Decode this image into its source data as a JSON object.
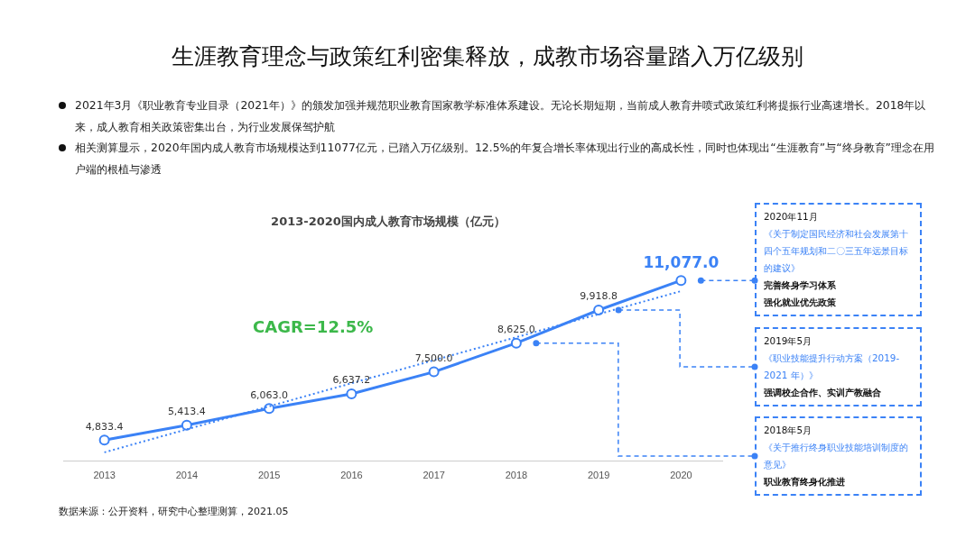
{
  "chart_data": {
    "type": "line",
    "title": "生涯教育理念与政策红利密集释放，成教市场容量踏入万亿级别",
    "subtitle": "2013-2020国内成人教育市场规模（亿元）",
    "categories": [
      "2013",
      "2014",
      "2015",
      "2016",
      "2017",
      "2018",
      "2019",
      "2020"
    ],
    "series": [
      {
        "color": "#3b82f6",
        "values": [
          4833.4,
          5413.4,
          6063.0,
          6637.2,
          7500.0,
          8625.0,
          9918.8,
          11077.0
        ],
        "value_labels": [
          "4,833.4",
          "5,413.4",
          "6,063.0",
          "6,637.2",
          "7,500.0",
          "8,625.0",
          "9,918.8",
          "11,077.0"
        ]
      },
      {
        "type": "line",
        "color": "#3b82f6",
        "values": [
          4350,
          5250,
          6150,
          7055,
          7955,
          8855,
          9760,
          10660
        ],
        "marker": "none",
        "line_style": "dotted"
      }
    ],
    "tick_labels": "x",
    "grid": false,
    "legend": false,
    "marker": "circle",
    "line_style": "solid",
    "annotations": [
      "2021年3月《职业教育专业目录（2021年）》的颁发加强并规范职业教育国家教学标准体系建设。无论长期短期，当前成人教育井喷式政策红利将提振行业高速增长。2018年以来，成人教育相关政策密集出台，为行业发展保驾护航",
      "相关测算显示，2020年国内成人教育市场规模达到11077亿元，已踏入万亿级别。12.5%的年复合增长率体现出行业的高成长性，同时也体现出“生涯教育”与“终身教育”理念在用户端的根植与渗透",
      "CAGR=12.5%",
      "2020年11月",
      "《关于制定国民经济和社会发展第十四个五年规划和二〇三五年远景目标的建议》",
      "完善终身学习体系",
      "强化就业优先政策",
      "2019年5月",
      "《职业技能提升行动方案（2019-2021 年）》",
      "强调校企合作、实训产教融合",
      "2018年5月",
      "《关于推行终身职业技能培训制度的意见》",
      "职业教育终身化推进",
      "数据来源：公开资料，研究中心整理测算，2021.05"
    ]
  }
}
